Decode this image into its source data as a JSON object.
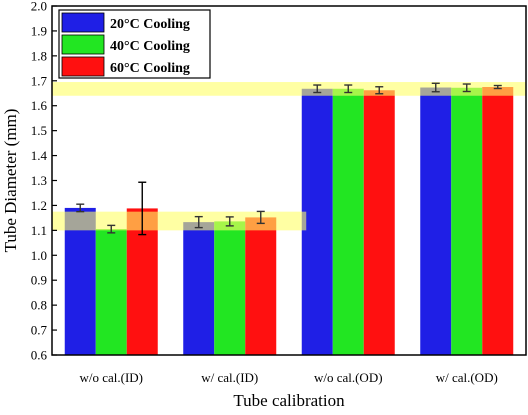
{
  "chart_data": {
    "type": "bar",
    "xlabel": "Tube calibration",
    "ylabel": "Tube Diameter (mm)",
    "ylim": [
      0.6,
      2.0
    ],
    "yticks": [
      "0.6",
      "0.7",
      "0.8",
      "0.9",
      "1.0",
      "1.1",
      "1.2",
      "1.3",
      "1.4",
      "1.5",
      "1.6",
      "1.7",
      "1.8",
      "1.9",
      "2.0"
    ],
    "categories": [
      "w/o cal.(ID)",
      "w/ cal.(ID)",
      "w/o cal.(OD)",
      "w/ cal.(OD)"
    ],
    "series": [
      {
        "name": "20°C Cooling",
        "color": "#1f1fe6",
        "values": [
          1.19,
          1.133,
          1.668,
          1.673
        ],
        "errors": [
          0.015,
          0.022,
          0.015,
          0.017
        ]
      },
      {
        "name": "40°C Cooling",
        "color": "#22e622",
        "values": [
          1.105,
          1.136,
          1.668,
          1.672
        ],
        "errors": [
          0.015,
          0.018,
          0.015,
          0.015
        ]
      },
      {
        "name": "60°C Cooling",
        "color": "#ff1010",
        "values": [
          1.188,
          1.152,
          1.662,
          1.675
        ],
        "errors": [
          0.105,
          0.024,
          0.014,
          0.006
        ]
      }
    ],
    "highlight_bands": [
      {
        "y_from": 1.1,
        "y_to": 1.175,
        "span_categories": [
          0,
          1
        ],
        "color": "#ffff66"
      },
      {
        "y_from": 1.64,
        "y_to": 1.695,
        "span_categories": [
          0,
          3
        ],
        "color": "#ffff66"
      }
    ],
    "legend_position": "top-left",
    "grid": false
  }
}
